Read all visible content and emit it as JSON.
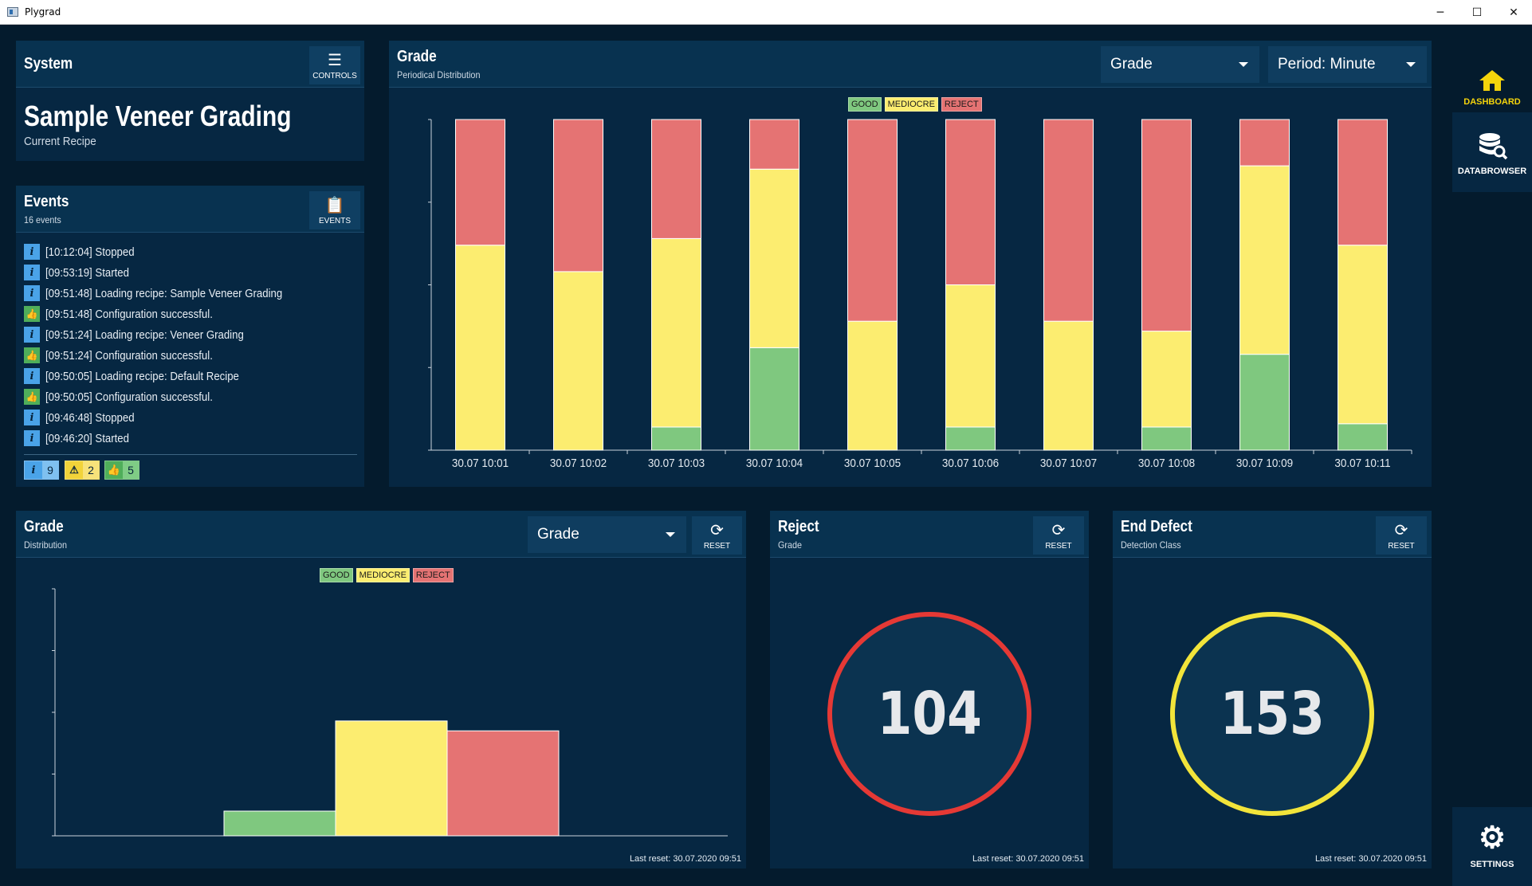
{
  "window": {
    "title": "Plygrad",
    "minimize": "─",
    "maximize": "☐",
    "close": "✕"
  },
  "system": {
    "title": "System",
    "controls_label": "CONTROLS",
    "recipe": "Sample Veneer Grading",
    "recipe_caption": "Current Recipe"
  },
  "events": {
    "title": "Events",
    "count_label": "16 events",
    "button_label": "EVENTS",
    "items": [
      {
        "type": "info",
        "text": "[10:12:04] Stopped"
      },
      {
        "type": "info",
        "text": "[09:53:19] Started"
      },
      {
        "type": "info",
        "text": "[09:51:48] Loading recipe: Sample Veneer Grading"
      },
      {
        "type": "ok",
        "text": "[09:51:48] Configuration successful."
      },
      {
        "type": "info",
        "text": "[09:51:24] Loading recipe: Veneer Grading"
      },
      {
        "type": "ok",
        "text": "[09:51:24] Configuration successful."
      },
      {
        "type": "info",
        "text": "[09:50:05] Loading recipe: Default Recipe"
      },
      {
        "type": "ok",
        "text": "[09:50:05] Configuration successful."
      },
      {
        "type": "info",
        "text": "[09:46:48] Stopped"
      },
      {
        "type": "info",
        "text": "[09:46:20] Started"
      }
    ],
    "counts": {
      "info": "9",
      "warning": "2",
      "ok": "5"
    }
  },
  "colors": {
    "good": "#7fc87f",
    "mediocre": "#fced70",
    "reject": "#e57373",
    "info": "#4aa3e8",
    "warning": "#f1d33a",
    "ok": "#4fae5a",
    "accent": "#f5d40b"
  },
  "grade_period": {
    "title": "Grade",
    "subtitle": "Periodical Distribution",
    "dropdown_grade": "Grade",
    "dropdown_period": "Period: Minute",
    "chart_data": {
      "type": "bar",
      "stacked": true,
      "categories": [
        "30.07 10:01",
        "30.07 10:02",
        "30.07 10:03",
        "30.07 10:04",
        "30.07 10:05",
        "30.07 10:06",
        "30.07 10:07",
        "30.07 10:08",
        "30.07 10:09",
        "30.07 10:11"
      ],
      "series": [
        {
          "name": "GOOD",
          "values": [
            0,
            0,
            7,
            31,
            0,
            7,
            0,
            7,
            29,
            8
          ]
        },
        {
          "name": "MEDIOCRE",
          "values": [
            62,
            54,
            57,
            54,
            39,
            43,
            39,
            29,
            57,
            54
          ]
        },
        {
          "name": "REJECT",
          "values": [
            38,
            46,
            36,
            15,
            61,
            50,
            61,
            64,
            14,
            38
          ]
        }
      ],
      "ylim": [
        0,
        100
      ],
      "legend": "top-center",
      "grid": false
    }
  },
  "grade_dist": {
    "title": "Grade",
    "subtitle": "Distribution",
    "dropdown": "Grade",
    "reset_label": "RESET",
    "last_reset": "Last reset: 30.07.2020 09:51",
    "chart_data": {
      "type": "bar",
      "categories": [
        "GOOD",
        "MEDIOCRE",
        "REJECT"
      ],
      "values": [
        20,
        93,
        85
      ],
      "ylim": [
        0,
        200
      ],
      "legend": "top-center",
      "grid": false
    }
  },
  "reject": {
    "title": "Reject",
    "subtitle": "Grade",
    "reset_label": "RESET",
    "value": "104",
    "last_reset": "Last reset: 30.07.2020 09:51"
  },
  "end_defect": {
    "title": "End Defect",
    "subtitle": "Detection Class",
    "reset_label": "RESET",
    "value": "153",
    "last_reset": "Last reset: 30.07.2020 09:51"
  },
  "sidebar": {
    "dashboard": "DASHBOARD",
    "databrowser": "DATABROWSER",
    "settings": "SETTINGS"
  }
}
